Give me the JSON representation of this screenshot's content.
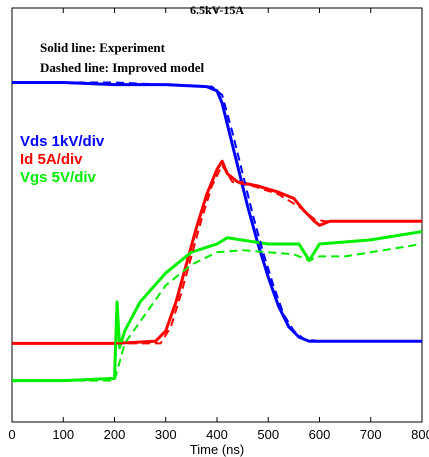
{
  "chart_data": {
    "type": "line",
    "title": "6.5kV-15A",
    "xlabel": "Time (ns)",
    "annotations": [
      "Solid line: Experiment",
      "Dashed line:  Improved model"
    ],
    "xlim": [
      0,
      800
    ],
    "xticks": [
      0,
      100,
      200,
      300,
      400,
      500,
      600,
      700,
      800
    ],
    "ylim": [
      0,
      10
    ],
    "series": [
      {
        "name": "Vds 1kV/div",
        "color": "#0000ff",
        "style": "solid",
        "x": [
          0,
          100,
          200,
          300,
          380,
          400,
          410,
          420,
          440,
          460,
          480,
          500,
          520,
          540,
          560,
          580,
          600,
          700,
          800
        ],
        "values": [
          8.2,
          8.2,
          8.15,
          8.15,
          8.1,
          8.0,
          7.7,
          7.2,
          6.2,
          5.2,
          4.3,
          3.5,
          2.8,
          2.3,
          2.05,
          1.95,
          1.95,
          1.95,
          1.95
        ]
      },
      {
        "name": "Id 5A/div",
        "color": "#ff0000",
        "style": "solid",
        "x": [
          0,
          100,
          200,
          280,
          300,
          320,
          340,
          360,
          380,
          400,
          410,
          420,
          440,
          480,
          520,
          550,
          570,
          590,
          600,
          620,
          700,
          800
        ],
        "values": [
          1.9,
          1.9,
          1.9,
          1.95,
          2.2,
          2.9,
          3.8,
          4.7,
          5.5,
          6.1,
          6.3,
          6.0,
          5.8,
          5.7,
          5.55,
          5.4,
          5.1,
          4.85,
          4.75,
          4.85,
          4.85,
          4.85
        ]
      },
      {
        "name": "Vgs 5V/div",
        "color": "#00ee00",
        "style": "solid",
        "x": [
          0,
          100,
          195,
          200,
          205,
          210,
          220,
          250,
          300,
          350,
          400,
          420,
          500,
          560,
          580,
          600,
          700,
          800
        ],
        "values": [
          1.0,
          1.0,
          1.05,
          1.05,
          2.9,
          1.8,
          2.2,
          2.9,
          3.6,
          4.1,
          4.3,
          4.45,
          4.3,
          4.3,
          3.9,
          4.3,
          4.4,
          4.6
        ]
      },
      {
        "color": "#0000ff",
        "style": "dashed",
        "x": [
          0,
          200,
          390,
          410,
          430,
          450,
          470,
          490,
          510,
          530,
          550,
          570,
          600,
          800
        ],
        "values": [
          8.2,
          8.2,
          8.1,
          7.9,
          7.0,
          6.0,
          5.0,
          4.1,
          3.3,
          2.6,
          2.2,
          2.0,
          1.95,
          1.95
        ]
      },
      {
        "color": "#ff0000",
        "style": "dashed",
        "x": [
          0,
          290,
          310,
          330,
          350,
          370,
          390,
          410,
          430,
          470,
          520,
          560,
          590,
          610,
          800
        ],
        "values": [
          1.9,
          1.9,
          2.3,
          3.1,
          4.0,
          4.9,
          5.7,
          6.2,
          5.8,
          5.7,
          5.5,
          5.2,
          4.9,
          4.85,
          4.85
        ]
      },
      {
        "color": "#00ee00",
        "style": "dashed",
        "x": [
          0,
          200,
          220,
          260,
          300,
          350,
          400,
          450,
          500,
          550,
          580,
          600,
          650,
          700,
          800
        ],
        "values": [
          1.0,
          1.0,
          1.9,
          2.6,
          3.3,
          3.8,
          4.1,
          4.15,
          4.1,
          4.05,
          3.9,
          4.0,
          4.0,
          4.1,
          4.3
        ]
      }
    ]
  }
}
